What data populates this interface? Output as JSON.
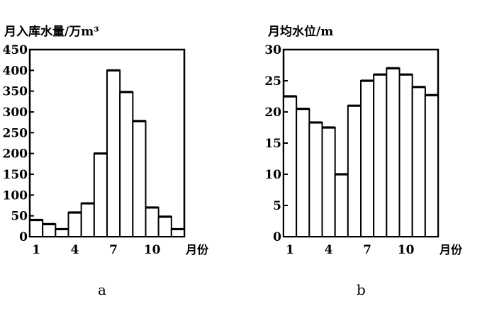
{
  "chart_data": [
    {
      "type": "bar",
      "panel_label": "a",
      "ylabel": "月入库水量/万m³",
      "xlabel": "月份",
      "x": [
        1,
        2,
        3,
        4,
        5,
        6,
        7,
        8,
        9,
        10,
        11,
        12
      ],
      "values": [
        40,
        30,
        18,
        58,
        80,
        200,
        400,
        348,
        278,
        70,
        48,
        18
      ],
      "ylim": [
        0,
        450
      ],
      "yticks": [
        0,
        50,
        100,
        150,
        200,
        250,
        300,
        350,
        400,
        450
      ],
      "xticks": [
        1,
        4,
        7,
        10
      ],
      "grid": false
    },
    {
      "type": "bar",
      "panel_label": "b",
      "ylabel": "月均水位/m",
      "xlabel": "月份",
      "x": [
        1,
        2,
        3,
        4,
        5,
        6,
        7,
        8,
        9,
        10,
        11,
        12
      ],
      "values": [
        22.5,
        20.5,
        18.3,
        17.5,
        10,
        21,
        25,
        26,
        27,
        26,
        24,
        22.7
      ],
      "ylim": [
        0,
        30
      ],
      "yticks": [
        0,
        5,
        10,
        15,
        20,
        25,
        30
      ],
      "xticks": [
        1,
        4,
        7,
        10
      ],
      "grid": false
    }
  ]
}
